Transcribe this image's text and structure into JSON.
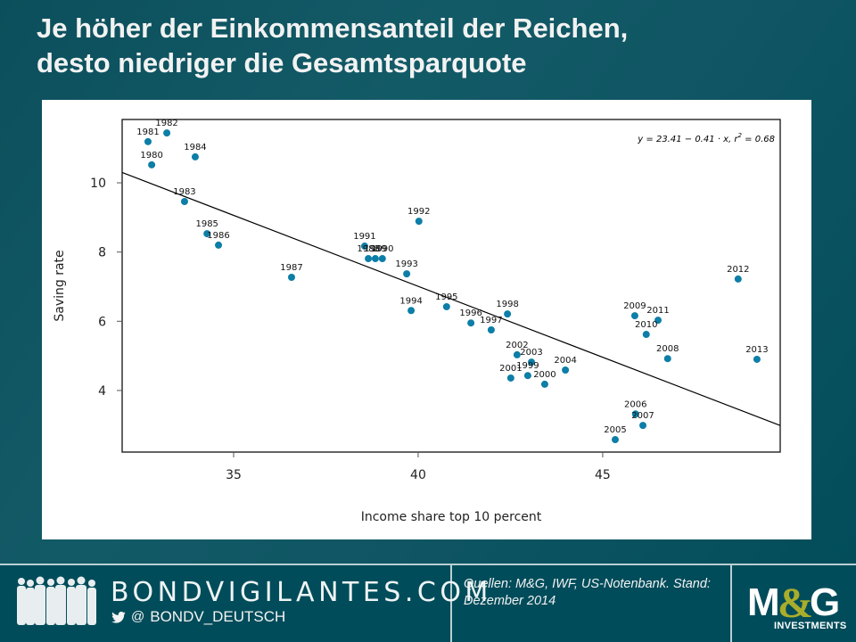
{
  "title_lines": [
    "Je höher der Einkommensanteil der Reichen,",
    "desto niedriger die Gesamtsparquote"
  ],
  "footer": {
    "brand": "BONDVIGILANTES.COM",
    "twitter_icon": "twitter-bird-icon",
    "at_symbol": "@",
    "handle": "BONDV_DEUTSCH",
    "source_text": "Quellen: M&G, IWF, US-Notenbank. Stand: Dezember 2014",
    "logo_text": "M&G",
    "logo_subtext": "INVESTMENTS",
    "colors": {
      "background": "#014c5a",
      "logo_ampersand": "#a9ad2b",
      "text": "#ffffff"
    }
  },
  "chart_data": {
    "type": "scatter",
    "title": "",
    "xlabel": "Income share top 10 percent",
    "ylabel": "Saving rate",
    "xlim": [
      31.98,
      49.81
    ],
    "ylim": [
      2.22,
      11.83
    ],
    "xticks": [
      35,
      40,
      45
    ],
    "yticks": [
      4,
      6,
      8,
      10
    ],
    "grid": false,
    "point_color": "#0d7ea7",
    "regression": {
      "intercept": 23.41,
      "slope": -0.41,
      "r2": 0.68,
      "label_prefix": "y = 23.41 − 0.41 · x,  r",
      "label_sup": "2",
      "label_suffix": " = 0.68",
      "label_position": "top-right"
    },
    "points": [
      {
        "label": "1980",
        "x": 32.78,
        "y": 10.52
      },
      {
        "label": "1981",
        "x": 32.68,
        "y": 11.19
      },
      {
        "label": "1982",
        "x": 33.19,
        "y": 11.44
      },
      {
        "label": "1983",
        "x": 33.67,
        "y": 9.46
      },
      {
        "label": "1984",
        "x": 33.96,
        "y": 10.75
      },
      {
        "label": "1985",
        "x": 34.28,
        "y": 8.53
      },
      {
        "label": "1986",
        "x": 34.59,
        "y": 8.2
      },
      {
        "label": "1987",
        "x": 36.57,
        "y": 7.27
      },
      {
        "label": "1988",
        "x": 38.65,
        "y": 7.81
      },
      {
        "label": "1989",
        "x": 38.84,
        "y": 7.81
      },
      {
        "label": "1990",
        "x": 39.03,
        "y": 7.81
      },
      {
        "label": "1991",
        "x": 38.55,
        "y": 8.17
      },
      {
        "label": "1992",
        "x": 40.02,
        "y": 8.89
      },
      {
        "label": "1993",
        "x": 39.69,
        "y": 7.37
      },
      {
        "label": "1994",
        "x": 39.81,
        "y": 6.31
      },
      {
        "label": "1995",
        "x": 40.77,
        "y": 6.42
      },
      {
        "label": "1996",
        "x": 41.43,
        "y": 5.95
      },
      {
        "label": "1997",
        "x": 41.98,
        "y": 5.75
      },
      {
        "label": "1998",
        "x": 42.42,
        "y": 6.21
      },
      {
        "label": "1999",
        "x": 42.97,
        "y": 4.43
      },
      {
        "label": "2000",
        "x": 43.43,
        "y": 4.18
      },
      {
        "label": "2001",
        "x": 42.51,
        "y": 4.36
      },
      {
        "label": "2002",
        "x": 42.68,
        "y": 5.03
      },
      {
        "label": "2003",
        "x": 43.07,
        "y": 4.82
      },
      {
        "label": "2004",
        "x": 43.99,
        "y": 4.59
      },
      {
        "label": "2005",
        "x": 45.34,
        "y": 2.58
      },
      {
        "label": "2006",
        "x": 45.89,
        "y": 3.32
      },
      {
        "label": "2007",
        "x": 46.09,
        "y": 2.99
      },
      {
        "label": "2008",
        "x": 46.76,
        "y": 4.92
      },
      {
        "label": "2009",
        "x": 45.87,
        "y": 6.16
      },
      {
        "label": "2010",
        "x": 46.18,
        "y": 5.62
      },
      {
        "label": "2011",
        "x": 46.5,
        "y": 6.03
      },
      {
        "label": "2012",
        "x": 48.67,
        "y": 7.22
      },
      {
        "label": "2013",
        "x": 49.18,
        "y": 4.9
      }
    ]
  }
}
